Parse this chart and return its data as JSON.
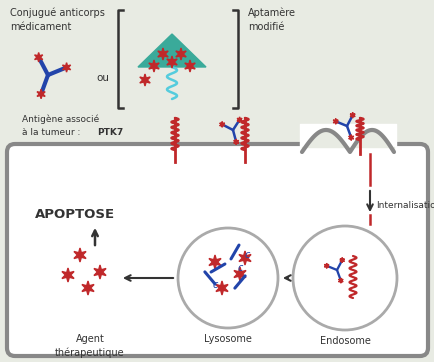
{
  "bg_color": "#e8ebe3",
  "cell_bg": "#ffffff",
  "cell_border_color": "#888888",
  "red_color": "#c0282a",
  "blue_color": "#2244aa",
  "teal_color": "#3aaa9a",
  "gray_color": "#888888",
  "dark_color": "#333333",
  "texts": {
    "conjugue": "Conjugué anticorps\nmédicament",
    "ou": "ou",
    "aptamere": "Aptamère\nmodifié",
    "antigene_pre": "Antigène associé\nà la tumeur : ",
    "antigene_bold": "PTK7",
    "internalisation": "Internalisation",
    "apoptose": "APOPTOSE",
    "agent": "Agent\nthérapeutique",
    "lysosome": "Lysosome",
    "endosome": "Endosome"
  },
  "figsize": [
    4.34,
    3.62
  ],
  "dpi": 100
}
